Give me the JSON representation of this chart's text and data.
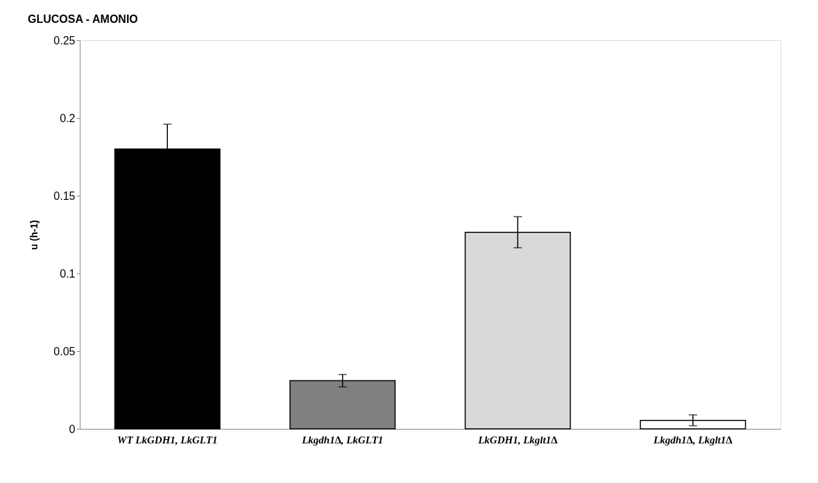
{
  "chart_data": {
    "type": "bar",
    "title": "GLUCOSA - AMONIO",
    "ylabel": "u (h-1)",
    "categories": [
      "WT LkGDH1, LkGLT1",
      "Lkgdh1∆, LkGLT1",
      "LkGDH1, Lkglt1∆",
      "Lkgdh1∆, Lkglt1∆"
    ],
    "values": [
      0.18,
      0.031,
      0.1265,
      0.0055
    ],
    "colors": [
      "#000000",
      "#808080",
      "#d9d9d9",
      "#ffffff"
    ],
    "errors": [
      0.016,
      0.004,
      0.01,
      0.0035
    ],
    "ylim": [
      0,
      0.25
    ],
    "yticks": [
      0,
      0.05,
      0.1,
      0.15,
      0.2,
      0.25
    ],
    "grid": false
  }
}
